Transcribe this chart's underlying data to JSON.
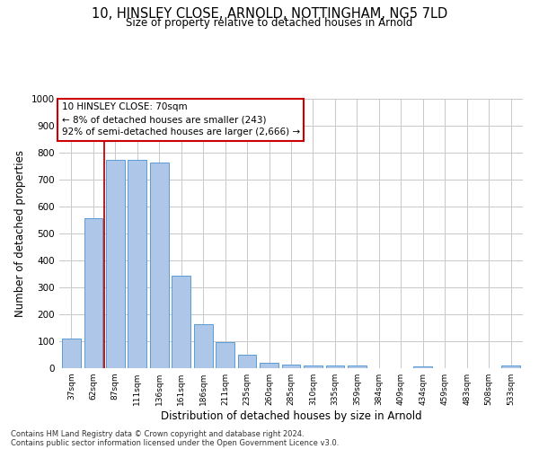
{
  "title_line1": "10, HINSLEY CLOSE, ARNOLD, NOTTINGHAM, NG5 7LD",
  "title_line2": "Size of property relative to detached houses in Arnold",
  "xlabel": "Distribution of detached houses by size in Arnold",
  "ylabel": "Number of detached properties",
  "categories": [
    "37sqm",
    "62sqm",
    "87sqm",
    "111sqm",
    "136sqm",
    "161sqm",
    "186sqm",
    "211sqm",
    "235sqm",
    "260sqm",
    "285sqm",
    "310sqm",
    "335sqm",
    "359sqm",
    "384sqm",
    "409sqm",
    "434sqm",
    "459sqm",
    "483sqm",
    "508sqm",
    "533sqm"
  ],
  "values": [
    110,
    558,
    775,
    775,
    765,
    342,
    163,
    97,
    50,
    20,
    13,
    10,
    9,
    9,
    0,
    0,
    7,
    0,
    0,
    0,
    10
  ],
  "bar_color": "#aec6e8",
  "bar_edge_color": "#5b9bd5",
  "grid_color": "#c8c8c8",
  "highlight_color": "#cc0000",
  "annotation_line1": "10 HINSLEY CLOSE: 70sqm",
  "annotation_line2": "← 8% of detached houses are smaller (243)",
  "annotation_line3": "92% of semi-detached houses are larger (2,666) →",
  "annotation_box_color": "#ffffff",
  "annotation_box_edge_color": "#cc0000",
  "ylim": [
    0,
    1000
  ],
  "yticks": [
    0,
    100,
    200,
    300,
    400,
    500,
    600,
    700,
    800,
    900,
    1000
  ],
  "footer_line1": "Contains HM Land Registry data © Crown copyright and database right 2024.",
  "footer_line2": "Contains public sector information licensed under the Open Government Licence v3.0."
}
